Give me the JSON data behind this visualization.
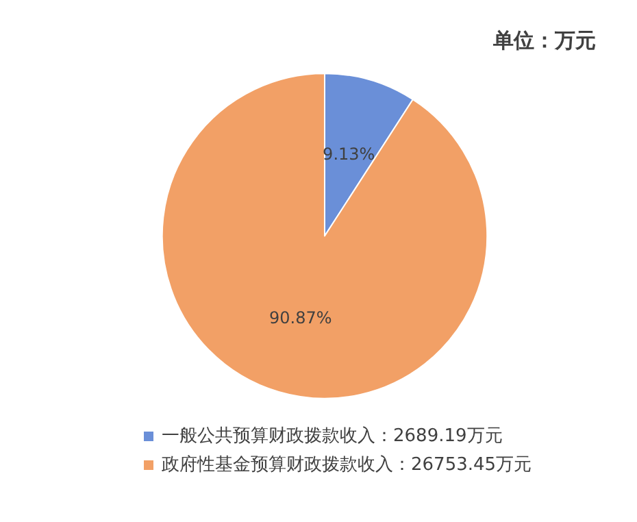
{
  "chart_data": {
    "type": "pie",
    "annotations": [
      "单位：万元"
    ],
    "categories": [
      "一般公共预算财政拨款收入：2689.19万元",
      "政府性基金预算财政拨款收入：26753.45万元"
    ],
    "values": [
      9.13,
      90.87
    ],
    "colors": [
      "#6a8fd8",
      "#f2a066"
    ],
    "value_labels": [
      "9.13%",
      "90.87%"
    ],
    "legend": "bottom"
  }
}
